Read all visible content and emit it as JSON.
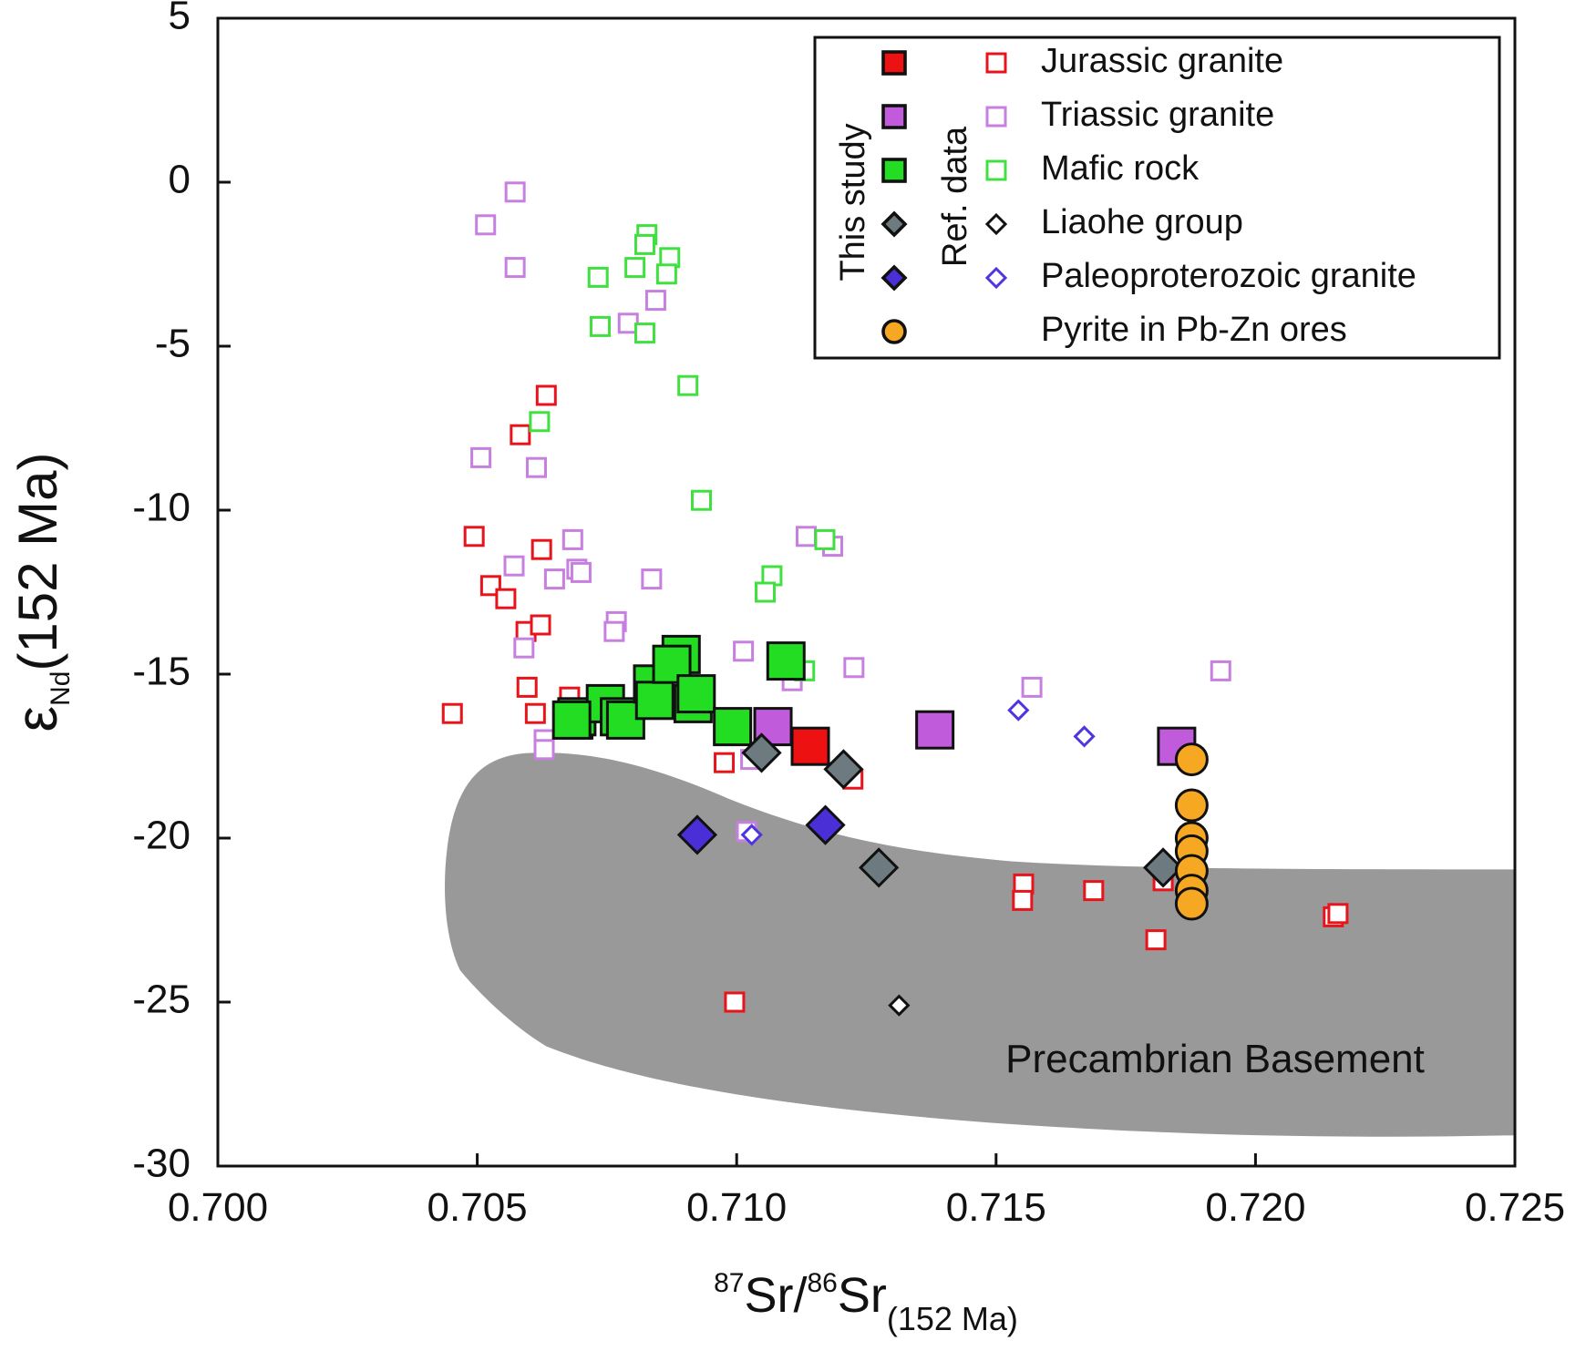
{
  "chart_data": {
    "type": "scatter",
    "x_label": {
      "sup1": "87",
      "a": "Sr/",
      "sup2": "86",
      "b": "Sr",
      "sub": "(152 Ma)"
    },
    "y_label": {
      "main": "ε",
      "sub": "Nd",
      "rest": "(152 Ma)"
    },
    "xlim": [
      0.7,
      0.725
    ],
    "ylim": [
      -30,
      5
    ],
    "xticks": [
      {
        "value": 0.7,
        "label": "0.700"
      },
      {
        "value": 0.705,
        "label": "0.705"
      },
      {
        "value": 0.71,
        "label": "0.710"
      },
      {
        "value": 0.715,
        "label": "0.715"
      },
      {
        "value": 0.72,
        "label": "0.720"
      },
      {
        "value": 0.725,
        "label": "0.725"
      }
    ],
    "yticks": [
      5,
      0,
      -5,
      -10,
      -15,
      -20,
      -25,
      -30
    ],
    "annotation": "Precambrian Basement",
    "legend_groups": [
      "This study",
      "Ref. data"
    ],
    "legend_entries": [
      "Jurassic granite",
      "Triassic granite",
      "Mafic rock",
      "Liaohe group",
      "Paleoproterozoic granite",
      "Pyrite in Pb-Zn ores"
    ],
    "series": [
      {
        "group": 1,
        "entry": 0,
        "marker": "square",
        "filled": false,
        "color": "#e8141b",
        "x": [
          0.70452,
          0.70494,
          0.70526,
          0.70555,
          0.70583,
          0.70633,
          0.70624,
          0.70594,
          0.70622,
          0.70596,
          0.70612,
          0.70678,
          0.70976,
          0.71224,
          0.70996,
          0.71553,
          0.71551,
          0.71688,
          0.71808,
          0.71822,
          0.7215,
          0.72159
        ],
        "values": [
          -16.2,
          -10.8,
          -12.3,
          -12.7,
          -7.7,
          -6.5,
          -11.2,
          -13.7,
          -13.5,
          -15.4,
          -16.2,
          -15.7,
          -17.7,
          -18.2,
          -25.0,
          -21.4,
          -21.9,
          -21.6,
          -23.1,
          -21.3,
          -22.4,
          -22.3
        ]
      },
      {
        "group": 1,
        "entry": 1,
        "marker": "square",
        "filled": false,
        "color": "#c77fe0",
        "x": [
          0.70573,
          0.70516,
          0.70573,
          0.70791,
          0.70844,
          0.70507,
          0.70614,
          0.70684,
          0.70571,
          0.70692,
          0.70649,
          0.707,
          0.70836,
          0.70768,
          0.70764,
          0.7059,
          0.71013,
          0.71134,
          0.71185,
          0.71226,
          0.71107,
          0.71569,
          0.71933,
          0.70629,
          0.70629,
          0.71019,
          0.71027
        ],
        "values": [
          -0.3,
          -1.3,
          -2.6,
          -4.3,
          -3.6,
          -8.4,
          -8.7,
          -10.9,
          -11.7,
          -11.8,
          -12.1,
          -11.9,
          -12.1,
          -13.4,
          -13.7,
          -14.2,
          -14.3,
          -10.8,
          -11.1,
          -14.8,
          -15.2,
          -15.4,
          -14.9,
          -17.0,
          -17.3,
          -19.8,
          -17.6
        ]
      },
      {
        "group": 1,
        "entry": 2,
        "marker": "square",
        "filled": false,
        "color": "#3fe03f",
        "x": [
          0.70827,
          0.70823,
          0.70804,
          0.70871,
          0.70865,
          0.70733,
          0.70737,
          0.70823,
          0.70906,
          0.7062,
          0.70932,
          0.7117,
          0.71068,
          0.71055,
          0.71131
        ],
        "values": [
          -1.6,
          -1.9,
          -2.6,
          -2.3,
          -2.8,
          -2.9,
          -4.4,
          -4.6,
          -6.2,
          -7.3,
          -9.7,
          -10.9,
          -12.0,
          -12.5,
          -14.9
        ]
      },
      {
        "group": 1,
        "entry": 3,
        "marker": "diamond",
        "filled": false,
        "color": "#111111",
        "x": [
          0.71313
        ],
        "values": [
          -25.1
        ]
      },
      {
        "group": 1,
        "entry": 4,
        "marker": "diamond",
        "filled": false,
        "color": "#4f35e0",
        "x": [
          0.71543,
          0.7167,
          0.71029
        ],
        "values": [
          -16.1,
          -16.9,
          -19.9
        ]
      },
      {
        "group": 0,
        "entry": 1,
        "marker": "square",
        "filled": true,
        "color": "#c05bdc",
        "x": [
          0.7107,
          0.71382,
          0.71848
        ],
        "values": [
          -16.6,
          -16.7,
          -17.2
        ]
      },
      {
        "group": 0,
        "entry": 2,
        "marker": "square",
        "filled": true,
        "color": "#22dd22",
        "x": [
          0.70686,
          0.70692,
          0.70747,
          0.70774,
          0.70786,
          0.70838,
          0.70842,
          0.70893,
          0.70875,
          0.70916,
          0.70922,
          0.70992,
          0.71095,
          0.70682
        ],
        "values": [
          -16.4,
          -16.3,
          -15.9,
          -16.3,
          -16.4,
          -15.3,
          -15.8,
          -14.4,
          -14.7,
          -15.9,
          -15.6,
          -16.6,
          -14.6,
          -16.4
        ]
      },
      {
        "group": 0,
        "entry": 0,
        "marker": "square",
        "filled": true,
        "color": "#ee1111",
        "x": [
          0.71142
        ],
        "values": [
          -17.2
        ]
      },
      {
        "group": 0,
        "entry": 3,
        "marker": "diamond",
        "filled": true,
        "color": "#6d7b80",
        "x": [
          0.71048,
          0.71206,
          0.71274,
          0.71822
        ],
        "values": [
          -17.4,
          -17.9,
          -20.9,
          -20.9
        ]
      },
      {
        "group": 0,
        "entry": 4,
        "marker": "diamond",
        "filled": true,
        "color": "#4b2fd6",
        "x": [
          0.70924,
          0.71171
        ],
        "values": [
          -19.9,
          -19.6
        ]
      },
      {
        "group": 0,
        "entry": 5,
        "marker": "circle",
        "filled": true,
        "color": "#f7a823",
        "x": [
          0.71877,
          0.71877,
          0.71877,
          0.71877,
          0.71877,
          0.71877,
          0.71877
        ],
        "values": [
          -17.6,
          -19.0,
          -20.0,
          -20.4,
          -21.0,
          -21.6,
          -22.0
        ]
      }
    ]
  }
}
